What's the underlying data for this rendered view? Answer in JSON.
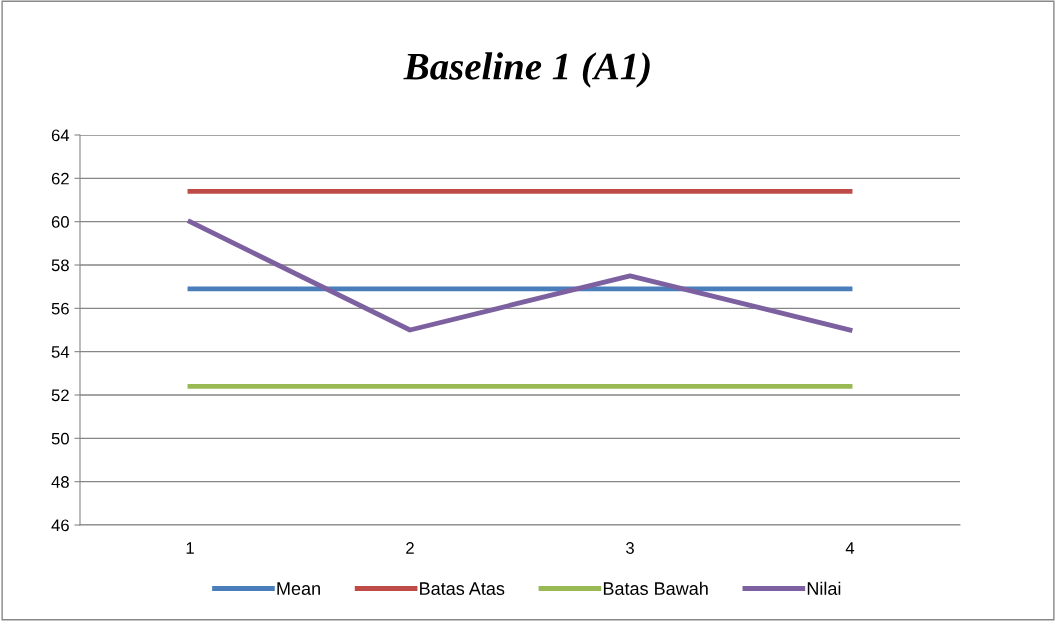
{
  "chart_data": {
    "type": "line",
    "title": "Baseline 1 (A1)",
    "categories": [
      "1",
      "2",
      "3",
      "4"
    ],
    "series": [
      {
        "name": "Mean",
        "color": "#4a7ebb",
        "values": [
          56.9,
          56.9,
          56.9,
          56.9
        ]
      },
      {
        "name": "Batas Atas",
        "color": "#be4b48",
        "values": [
          61.4,
          61.4,
          61.4,
          61.4
        ]
      },
      {
        "name": "Batas Bawah",
        "color": "#98b954",
        "values": [
          52.4,
          52.4,
          52.4,
          52.4
        ]
      },
      {
        "name": "Nilai",
        "color": "#7d60a0",
        "values": [
          60,
          55,
          57.5,
          55
        ]
      }
    ],
    "ylim": [
      46,
      64
    ],
    "yticks": [
      46,
      48,
      50,
      52,
      54,
      56,
      58,
      60,
      62,
      64
    ],
    "grid": "y",
    "legend": "bottom",
    "marker": "none",
    "line_style": "solid"
  }
}
